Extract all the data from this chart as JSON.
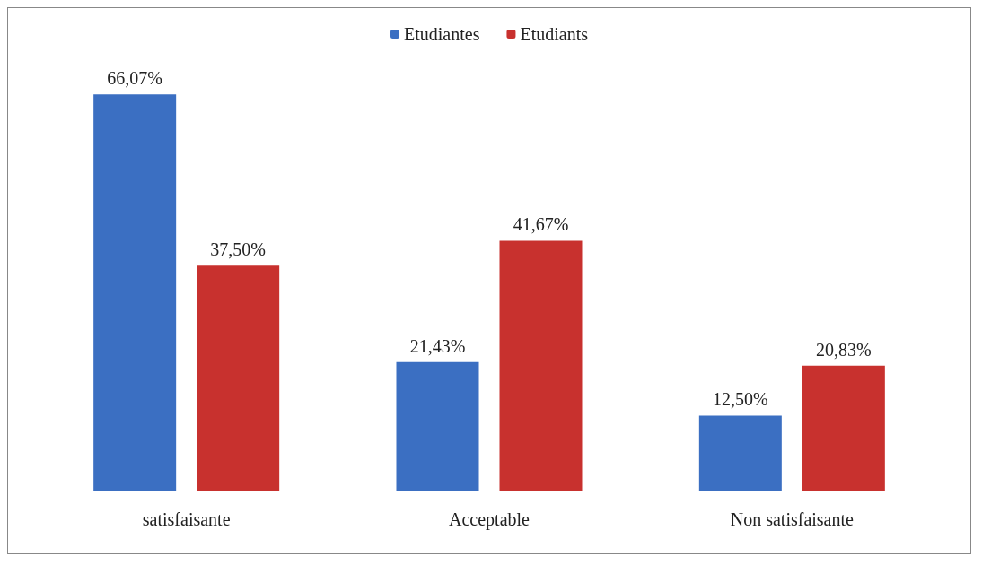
{
  "chart_data": {
    "type": "bar",
    "categories": [
      "satisfaisante",
      "Acceptable",
      "Non satisfaisante"
    ],
    "series": [
      {
        "name": "Etudiantes",
        "color": "#3b6fc2",
        "values": [
          66.07,
          21.43,
          12.5
        ],
        "value_labels": [
          "66,07%",
          "21,43%",
          "12,50%"
        ]
      },
      {
        "name": "Etudiants",
        "color": "#c8312e",
        "values": [
          37.5,
          41.67,
          20.83
        ],
        "value_labels": [
          "37,50%",
          "41,67%",
          "20,83%"
        ]
      }
    ],
    "legend": "top",
    "tick_labels": "x"
  }
}
